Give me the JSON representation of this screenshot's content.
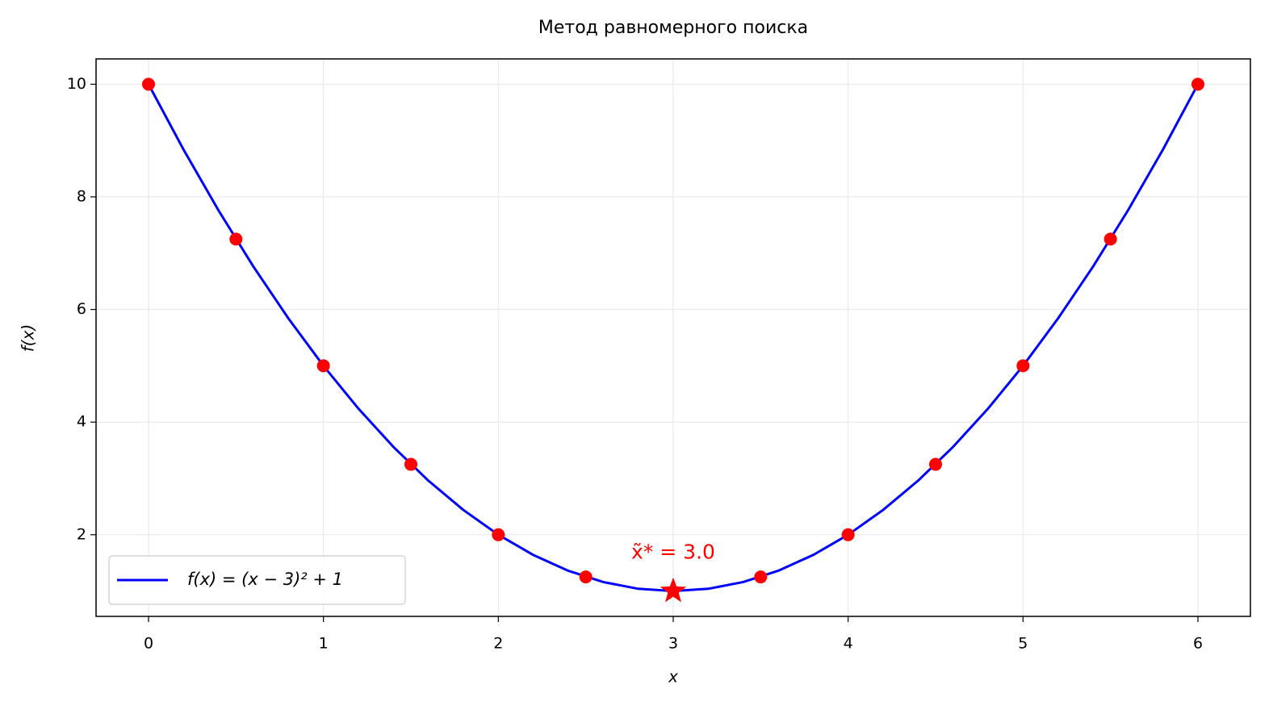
{
  "chart_data": {
    "type": "line",
    "title": "Метод равномерного поиска",
    "xlabel": "x",
    "ylabel": "f(x)",
    "xlim": [
      -0.3,
      6.3
    ],
    "ylim": [
      0.55,
      10.45
    ],
    "xticks": [
      0,
      1,
      2,
      3,
      4,
      5,
      6
    ],
    "yticks": [
      2,
      4,
      6,
      8,
      10
    ],
    "grid": true,
    "legend": "lower left",
    "series": [
      {
        "name": "f(x) = (x − 3)² + 1",
        "color": "#0000ff",
        "x": [
          0,
          0.2,
          0.4,
          0.6,
          0.8,
          1.0,
          1.2,
          1.4,
          1.6,
          1.8,
          2.0,
          2.2,
          2.4,
          2.6,
          2.8,
          3.0,
          3.2,
          3.4,
          3.6,
          3.8,
          4.0,
          4.2,
          4.4,
          4.6,
          4.8,
          5.0,
          5.2,
          5.4,
          5.6,
          5.8,
          6.0
        ],
        "values": [
          10,
          8.84,
          7.76,
          6.76,
          5.84,
          5,
          4.24,
          3.56,
          2.96,
          2.44,
          2,
          1.64,
          1.36,
          1.16,
          1.04,
          1,
          1.04,
          1.16,
          1.36,
          1.64,
          2,
          2.44,
          2.96,
          3.56,
          4.24,
          5,
          5.84,
          6.76,
          7.76,
          8.84,
          10
        ]
      }
    ],
    "markers": {
      "color": "#ff0000",
      "x": [
        0,
        0.5,
        1,
        1.5,
        2,
        2.5,
        3.5,
        4,
        4.5,
        5,
        5.5,
        6
      ],
      "values": [
        10,
        7.25,
        5,
        3.25,
        2,
        1.25,
        1.25,
        2,
        3.25,
        5,
        7.25,
        10
      ]
    },
    "minimum": {
      "x": 3,
      "value": 1,
      "color": "#ff0000",
      "label": "x̃* = 3.0"
    }
  }
}
